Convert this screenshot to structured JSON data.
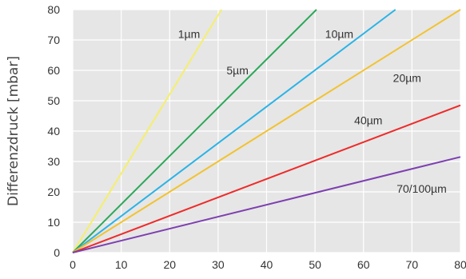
{
  "chart_data": {
    "type": "line",
    "xlabel": "",
    "ylabel": "Differenzdruck [mbar]",
    "xlim": [
      0,
      80
    ],
    "ylim": [
      0,
      80
    ],
    "xticks": [
      "0",
      "10",
      "20",
      "30",
      "40",
      "50",
      "60",
      "70",
      "80"
    ],
    "yticks": [
      "0",
      "10",
      "20",
      "30",
      "40",
      "50",
      "60",
      "70",
      "80"
    ],
    "grid": true,
    "background": "#e6e6e6",
    "series": [
      {
        "name": "1µm",
        "color": "#f5ef6a",
        "x": [
          0,
          30.7
        ],
        "y": [
          0,
          80
        ]
      },
      {
        "name": "5µm",
        "color": "#2aa85a",
        "x": [
          0,
          50.3
        ],
        "y": [
          0,
          80
        ]
      },
      {
        "name": "10µm",
        "color": "#2ab3e6",
        "x": [
          0,
          66.6
        ],
        "y": [
          0,
          80
        ]
      },
      {
        "name": "20µm",
        "color": "#f2c230",
        "x": [
          0,
          80
        ],
        "y": [
          0,
          80
        ]
      },
      {
        "name": "40µm",
        "color": "#ee2a2a",
        "x": [
          0,
          80
        ],
        "y": [
          0,
          48.5
        ]
      },
      {
        "name": "70/100µm",
        "color": "#7d3fb0",
        "x": [
          0,
          80
        ],
        "y": [
          0,
          31.5
        ]
      }
    ]
  }
}
